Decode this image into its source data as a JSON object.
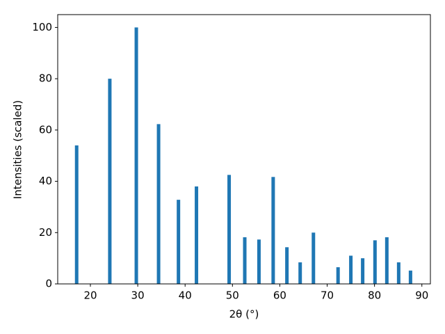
{
  "chart_data": {
    "type": "bar",
    "x_label": "2θ (°)",
    "y_label": "Intensities (scaled)",
    "x": [
      17.1,
      24.1,
      29.7,
      34.4,
      38.6,
      42.4,
      49.3,
      52.6,
      55.6,
      58.6,
      61.5,
      64.3,
      67.1,
      72.3,
      75.0,
      77.5,
      80.1,
      82.6,
      85.1,
      87.6
    ],
    "values": [
      54,
      80,
      100,
      62.3,
      32.8,
      38,
      42.5,
      18.2,
      17.3,
      41.7,
      14.3,
      8.4,
      20,
      6.5,
      11,
      10,
      17,
      18.2,
      8.4,
      5.2
    ],
    "color": "#1f77b4",
    "xlim": [
      13.1,
      91.8
    ],
    "xticks": [
      20,
      30,
      40,
      50,
      60,
      70,
      80,
      90
    ],
    "ylim": [
      0,
      105
    ],
    "yticks": [
      0,
      20,
      40,
      60,
      80,
      100
    ],
    "grid": false
  }
}
